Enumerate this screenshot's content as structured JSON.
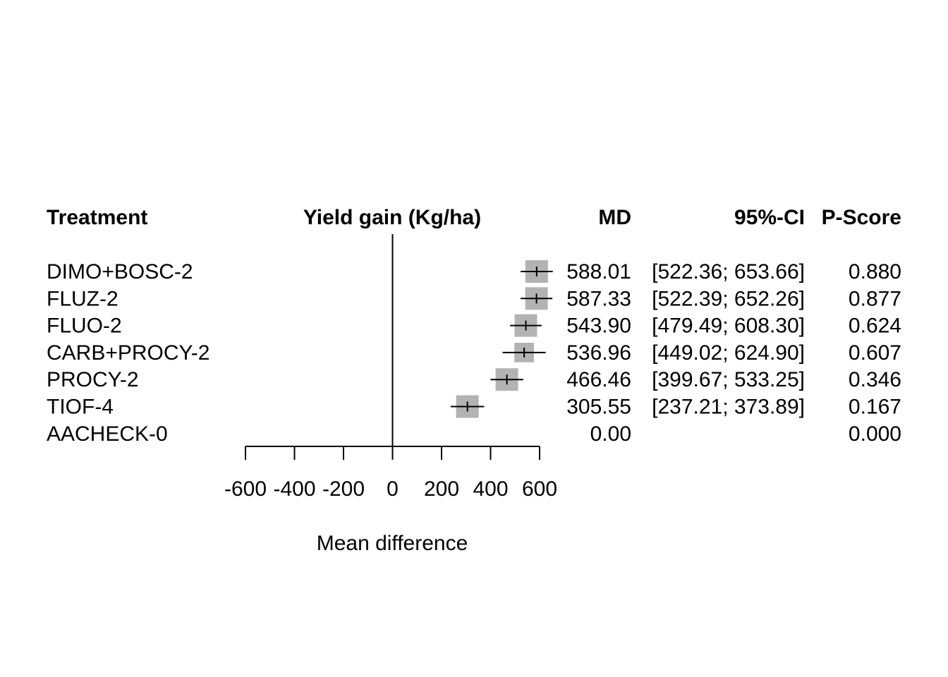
{
  "chart_data": {
    "type": "forest",
    "title": "Yield gain (Kg/ha)",
    "xlabel": "Mean difference",
    "xlim": [
      -600,
      600
    ],
    "xticks": [
      -600,
      -400,
      -200,
      0,
      200,
      400,
      600
    ],
    "reference_line": 0,
    "columns": {
      "treatment": "Treatment",
      "plot": "Yield gain (Kg/ha)",
      "md": "MD",
      "ci": "95%-CI",
      "pscore": "P-Score"
    },
    "rows": [
      {
        "treatment": "DIMO+BOSC-2",
        "md": 588.01,
        "lower": 522.36,
        "upper": 653.66,
        "md_text": "588.01",
        "ci_text": "[522.36; 653.66]",
        "pscore_text": "0.880",
        "weight": 1.0
      },
      {
        "treatment": "FLUZ-2",
        "md": 587.33,
        "lower": 522.39,
        "upper": 652.26,
        "md_text": "587.33",
        "ci_text": "[522.39; 652.26]",
        "pscore_text": "0.877",
        "weight": 1.0
      },
      {
        "treatment": "FLUO-2",
        "md": 543.9,
        "lower": 479.49,
        "upper": 608.3,
        "md_text": "543.90",
        "ci_text": "[479.49; 608.30]",
        "pscore_text": "0.624",
        "weight": 1.0
      },
      {
        "treatment": "CARB+PROCY-2",
        "md": 536.96,
        "lower": 449.02,
        "upper": 624.9,
        "md_text": "536.96",
        "ci_text": "[449.02; 624.90]",
        "pscore_text": "0.607",
        "weight": 0.75
      },
      {
        "treatment": "PROCY-2",
        "md": 466.46,
        "lower": 399.67,
        "upper": 533.25,
        "md_text": "466.46",
        "ci_text": "[399.67; 533.25]",
        "pscore_text": "0.346",
        "weight": 1.0
      },
      {
        "treatment": "TIOF-4",
        "md": 305.55,
        "lower": 237.21,
        "upper": 373.89,
        "md_text": "305.55",
        "ci_text": "[237.21; 373.89]",
        "pscore_text": "0.167",
        "weight": 1.0
      },
      {
        "treatment": "AACHECK-0",
        "md": 0.0,
        "lower": null,
        "upper": null,
        "md_text": "0.00",
        "ci_text": "",
        "pscore_text": "0.000",
        "weight": 0
      }
    ],
    "colors": {
      "box": "#b3b3b3",
      "line": "#000000"
    }
  }
}
